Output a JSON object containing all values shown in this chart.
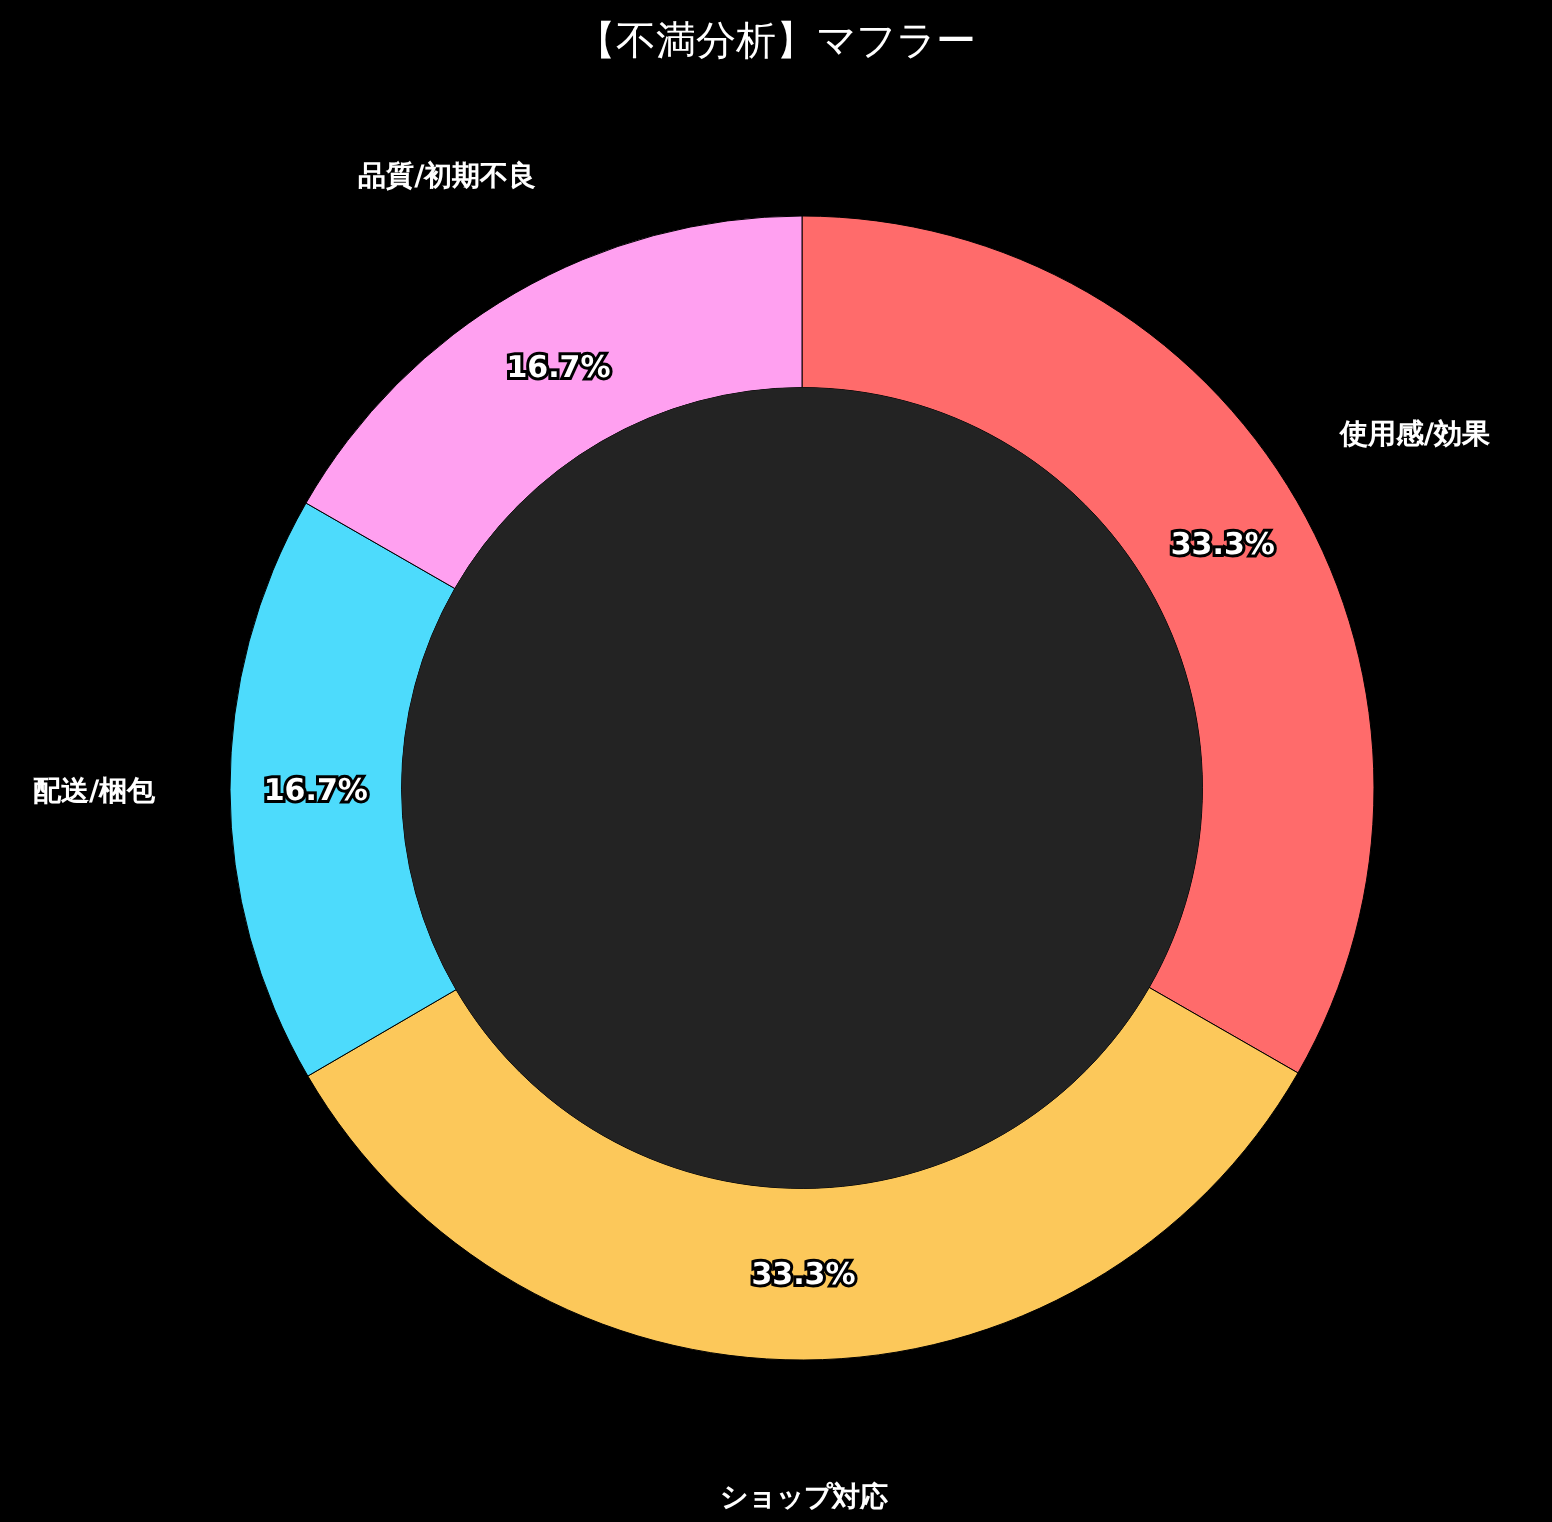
{
  "chart_data": {
    "type": "donut",
    "title": "【不満分析】マフラー",
    "categories": [
      "使用感/効果",
      "ショップ対応",
      "配送/梱包",
      "品質/初期不良"
    ],
    "values": [
      33.3,
      33.3,
      16.7,
      16.7
    ],
    "colors": [
      "#ff6b6b",
      "#fcc85a",
      "#4ddbfc",
      "#ffa0f0"
    ],
    "value_labels": [
      "33.3%",
      "33.3%",
      "16.7%",
      "16.7%"
    ]
  }
}
